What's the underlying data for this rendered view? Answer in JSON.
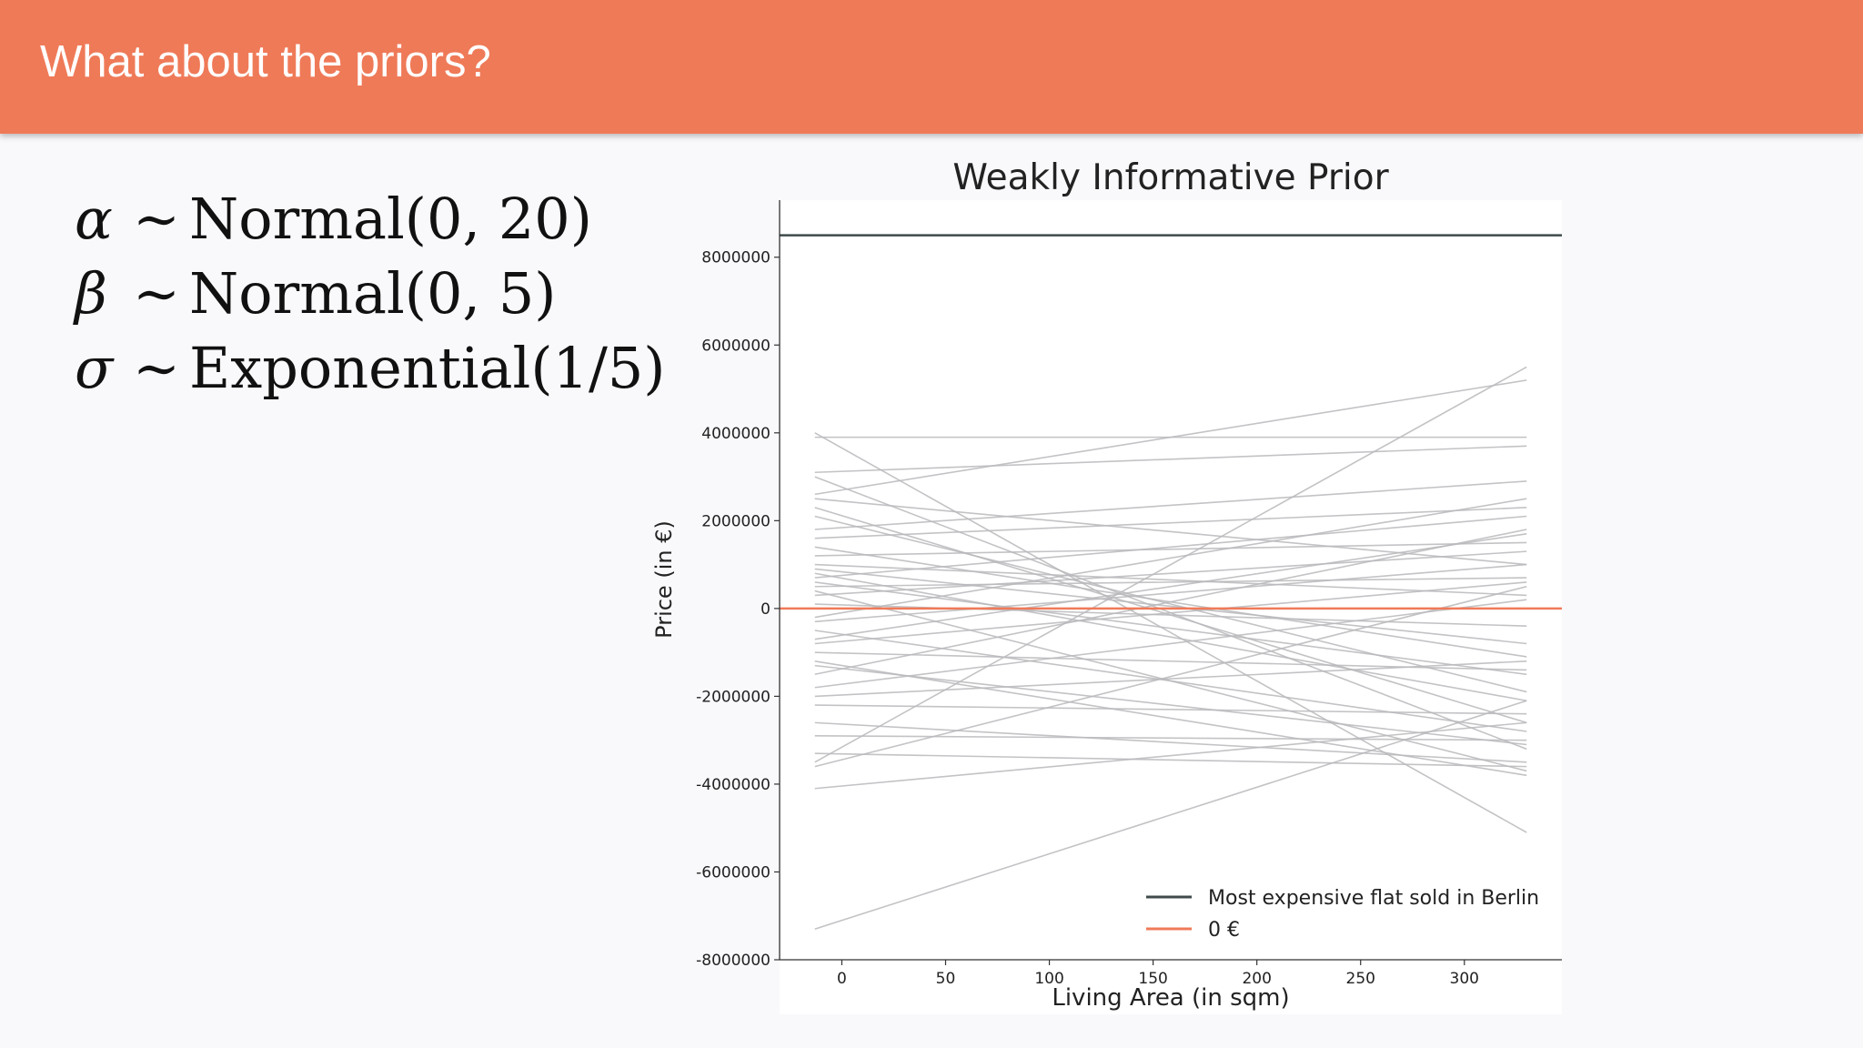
{
  "slide": {
    "title": "What about the priors?",
    "formulas": [
      {
        "symbol": "α",
        "tilde": "∼",
        "expr": "Normal(0, 20)"
      },
      {
        "symbol": "β",
        "tilde": "∼",
        "expr": "Normal(0, 5)"
      },
      {
        "symbol": "σ",
        "tilde": "∼",
        "expr": "Exponential(1/5)"
      }
    ]
  },
  "colors": {
    "header": "#ef7a58",
    "prior_line": "#b8b8bc",
    "max_price_line": "#3f4a4a",
    "zero_line": "#ef7a58"
  },
  "chart_data": {
    "type": "line",
    "title": "Weakly Informative Prior",
    "xlabel": "Living Area (in sqm)",
    "ylabel": "Price (in €)",
    "xlim": [
      -30,
      347
    ],
    "ylim": [
      -8000000,
      9300000
    ],
    "xticks": [
      0,
      50,
      100,
      150,
      200,
      250,
      300
    ],
    "yticks": [
      -8000000,
      -6000000,
      -4000000,
      -2000000,
      0,
      2000000,
      4000000,
      6000000,
      8000000
    ],
    "ytick_labels": [
      "-8000000",
      "-6000000",
      "-4000000",
      "-2000000",
      "0",
      "2000000",
      "4000000",
      "6000000",
      "8000000"
    ],
    "xtick_labels": [
      "0",
      "50",
      "100",
      "150",
      "200",
      "250",
      "300"
    ],
    "grid": false,
    "legend_position": "bottom-right",
    "reference_lines": [
      {
        "name": "Most expensive flat sold in Berlin",
        "y": 8500000,
        "color": "#3f4a4a"
      },
      {
        "name": "0 €",
        "y": 0,
        "color": "#ef7a58"
      }
    ],
    "prior_lines_x_range": [
      -13,
      330
    ],
    "prior_lines": [
      [
        -7300000,
        -2100000
      ],
      [
        4000000,
        -5100000
      ],
      [
        -3500000,
        5500000
      ],
      [
        2600000,
        5200000
      ],
      [
        3900000,
        3900000
      ],
      [
        3100000,
        3700000
      ],
      [
        2500000,
        1000000
      ],
      [
        2300000,
        -2600000
      ],
      [
        3000000,
        -3200000
      ],
      [
        1800000,
        2900000
      ],
      [
        1200000,
        1500000
      ],
      [
        900000,
        -800000
      ],
      [
        700000,
        2100000
      ],
      [
        600000,
        -1500000
      ],
      [
        500000,
        700000
      ],
      [
        300000,
        1300000
      ],
      [
        100000,
        -400000
      ],
      [
        -200000,
        2500000
      ],
      [
        -500000,
        -2800000
      ],
      [
        -800000,
        600000
      ],
      [
        -1200000,
        -3800000
      ],
      [
        -1500000,
        1800000
      ],
      [
        -1800000,
        200000
      ],
      [
        -2200000,
        -2400000
      ],
      [
        -2600000,
        -3500000
      ],
      [
        -3600000,
        500000
      ],
      [
        -4100000,
        -2600000
      ],
      [
        -1300000,
        -3100000
      ],
      [
        1400000,
        -1100000
      ],
      [
        2100000,
        -1900000
      ],
      [
        -2900000,
        -3000000
      ],
      [
        -700000,
        1700000
      ],
      [
        1000000,
        300000
      ],
      [
        400000,
        -3700000
      ],
      [
        -1000000,
        -1400000
      ],
      [
        1600000,
        2300000
      ],
      [
        -2000000,
        -1200000
      ],
      [
        800000,
        -2100000
      ],
      [
        -300000,
        1000000
      ],
      [
        -3300000,
        -3600000
      ]
    ]
  }
}
